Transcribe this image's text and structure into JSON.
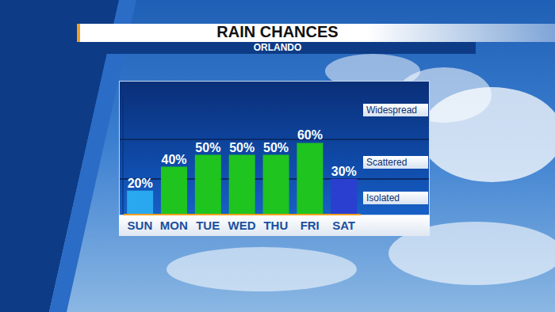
{
  "chart_data": {
    "type": "bar",
    "title": "RAIN CHANCES",
    "subtitle": "ORLANDO",
    "categories": [
      "SUN",
      "MON",
      "TUE",
      "WED",
      "THU",
      "FRI",
      "SAT"
    ],
    "values": [
      20,
      40,
      50,
      50,
      50,
      60,
      30
    ],
    "value_labels": [
      "20%",
      "40%",
      "50%",
      "50%",
      "50%",
      "60%",
      "30%"
    ],
    "colors": [
      "#29a8f0",
      "#1fc41f",
      "#1fc41f",
      "#1fc41f",
      "#1fc41f",
      "#1fc41f",
      "#2a3fd0"
    ],
    "ylim": [
      0,
      100
    ],
    "yticks": [
      0,
      100
    ],
    "grid": false,
    "tick_labels": "x",
    "data_labels": true,
    "annotations": [
      "Widespread",
      "Scattered",
      "Isolated"
    ]
  }
}
